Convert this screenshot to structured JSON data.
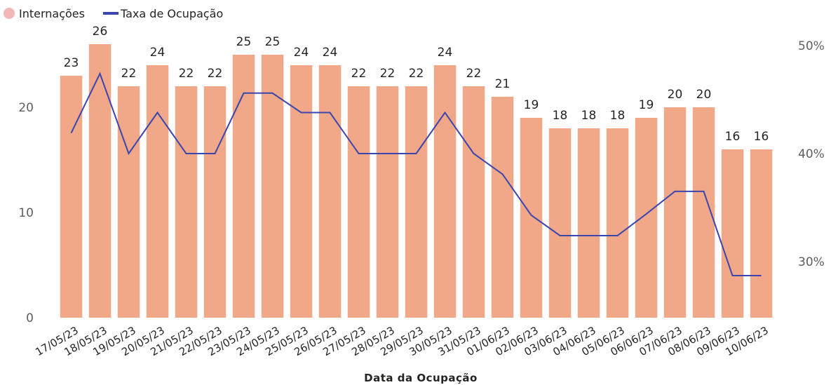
{
  "chart_data": {
    "type": "bar",
    "categories": [
      "17/05/23",
      "18/05/23",
      "19/05/23",
      "20/05/23",
      "21/05/23",
      "22/05/23",
      "23/05/23",
      "24/05/23",
      "25/05/23",
      "26/05/23",
      "27/05/23",
      "28/05/23",
      "29/05/23",
      "30/05/23",
      "31/05/23",
      "01/06/23",
      "02/06/23",
      "03/06/23",
      "04/06/23",
      "05/06/23",
      "06/06/23",
      "07/06/23",
      "08/06/23",
      "09/06/23",
      "10/06/23"
    ],
    "series": [
      {
        "name": "Internações",
        "type": "bar",
        "axis": "left",
        "color": "#F0A888",
        "values": [
          23,
          26,
          22,
          24,
          22,
          22,
          25,
          25,
          24,
          24,
          22,
          22,
          22,
          24,
          22,
          21,
          19,
          18,
          18,
          18,
          19,
          20,
          20,
          16,
          16
        ]
      },
      {
        "name": "Taxa de Ocupação",
        "type": "line",
        "axis": "right",
        "color": "#3B45AE",
        "values": [
          41.9,
          47.4,
          40.0,
          43.8,
          40.0,
          40.0,
          45.6,
          45.6,
          43.8,
          43.8,
          40.0,
          40.0,
          40.0,
          43.8,
          40.0,
          38.1,
          34.3,
          32.4,
          32.4,
          32.4,
          34.4,
          36.5,
          36.5,
          28.7,
          28.7
        ]
      }
    ],
    "xlabel": "Data da Ocupação",
    "ylabel": "",
    "ylim": [
      0,
      27
    ],
    "y_ticks": [
      0,
      10,
      20
    ],
    "y2lim": [
      25,
      51
    ],
    "y2_ticks": [
      30,
      40,
      50
    ],
    "y2_tick_labels": [
      "30%",
      "40%",
      "50%"
    ],
    "legend": {
      "position": "top-left",
      "entries": [
        {
          "label": "Internações",
          "symbol": "circle",
          "color": "#F4B7B7"
        },
        {
          "label": "Taxa de Ocupação",
          "symbol": "line",
          "color": "#3B45AE"
        }
      ]
    },
    "grid": false,
    "data_labels": true
  }
}
